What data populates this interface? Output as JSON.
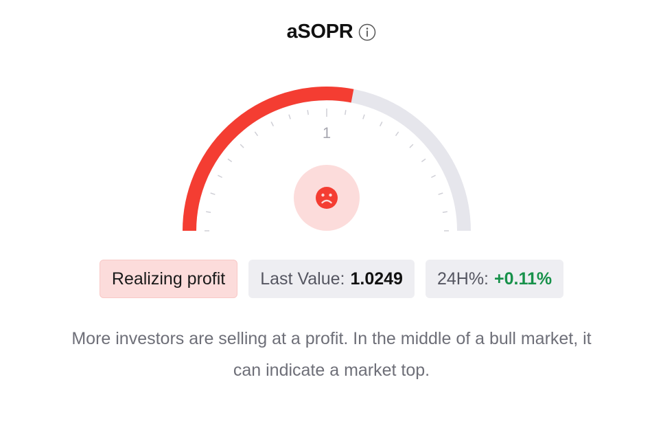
{
  "header": {
    "title": "aSOPR",
    "info_icon": "info-circle-icon"
  },
  "gauge": {
    "center_label": "1",
    "fill_fraction": 0.56,
    "fill_color": "#f43d32",
    "track_color": "#e6e6ec",
    "tick_color": "#cfcfd6",
    "face_icon": "sad-face-icon",
    "face_bg_color": "#fcdcdb"
  },
  "stats": {
    "status_label": "Realizing profit",
    "last_value_label": "Last Value:",
    "last_value": "1.0249",
    "change_label": "24H%:",
    "change_value": "+0.11%"
  },
  "description": "More investors are selling at a profit. In the middle of a bull market, it can indicate a market top."
}
